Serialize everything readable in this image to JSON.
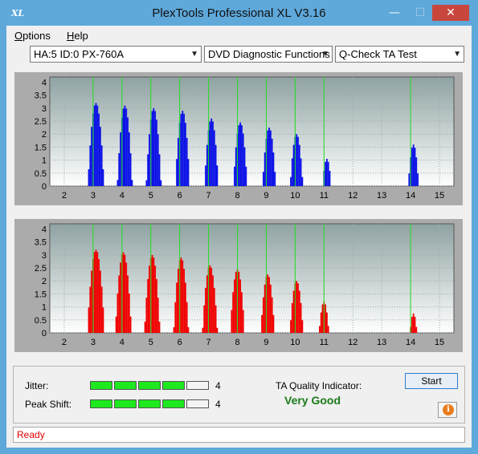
{
  "window": {
    "title": "PlexTools Professional XL V3.16",
    "icon_text": "XL",
    "minimize": "—",
    "maximize": "☐",
    "close": "✕"
  },
  "menu": [
    {
      "label": "Options"
    },
    {
      "label": "Help"
    }
  ],
  "toolbar": {
    "drive_select": "HA:5 ID:0  PX-760A",
    "function_select": "DVD Diagnostic Functions",
    "test_select": "Q-Check TA Test"
  },
  "chart_data": [
    {
      "type": "bar",
      "title": "",
      "color": "#0a10e6",
      "x_ticks": [
        "2",
        "3",
        "4",
        "5",
        "6",
        "7",
        "8",
        "9",
        "10",
        "11",
        "12",
        "13",
        "14",
        "15"
      ],
      "y_ticks": [
        "4",
        "3.5",
        "3",
        "2.5",
        "2",
        "1.5",
        "1",
        "0.5",
        "0"
      ],
      "ylim": [
        0,
        4.2
      ],
      "xlim": [
        1.5,
        15.5
      ],
      "peak_markers": [
        3,
        4,
        5,
        6,
        7,
        8,
        9,
        10,
        11,
        14
      ],
      "peaks": [
        {
          "center": 3.1,
          "height": 3.2,
          "spread": 0.28
        },
        {
          "center": 4.1,
          "height": 3.1,
          "spread": 0.26
        },
        {
          "center": 5.1,
          "height": 3.0,
          "spread": 0.26
        },
        {
          "center": 6.1,
          "height": 2.9,
          "spread": 0.25
        },
        {
          "center": 7.1,
          "height": 2.6,
          "spread": 0.24
        },
        {
          "center": 8.1,
          "height": 2.45,
          "spread": 0.24
        },
        {
          "center": 9.1,
          "height": 2.25,
          "spread": 0.23
        },
        {
          "center": 10.05,
          "height": 2.0,
          "spread": 0.22
        },
        {
          "center": 11.1,
          "height": 1.05,
          "spread": 0.15
        },
        {
          "center": 14.1,
          "height": 1.6,
          "spread": 0.18
        }
      ]
    },
    {
      "type": "bar",
      "title": "",
      "color": "#f00000",
      "x_ticks": [
        "2",
        "3",
        "4",
        "5",
        "6",
        "7",
        "8",
        "9",
        "10",
        "11",
        "12",
        "13",
        "14",
        "15"
      ],
      "y_ticks": [
        "4",
        "3.5",
        "3",
        "2.5",
        "2",
        "1.5",
        "1",
        "0.5",
        "0"
      ],
      "ylim": [
        0,
        4.2
      ],
      "xlim": [
        1.5,
        15.5
      ],
      "peak_markers": [
        3,
        4,
        5,
        6,
        7,
        8,
        9,
        10,
        11,
        14
      ],
      "peaks": [
        {
          "center": 3.1,
          "height": 3.2,
          "spread": 0.3
        },
        {
          "center": 4.05,
          "height": 3.1,
          "spread": 0.28
        },
        {
          "center": 5.05,
          "height": 3.0,
          "spread": 0.27
        },
        {
          "center": 6.05,
          "height": 2.9,
          "spread": 0.26
        },
        {
          "center": 7.05,
          "height": 2.6,
          "spread": 0.26
        },
        {
          "center": 8.0,
          "height": 2.45,
          "spread": 0.25
        },
        {
          "center": 9.05,
          "height": 2.25,
          "spread": 0.24
        },
        {
          "center": 10.05,
          "height": 2.0,
          "spread": 0.23
        },
        {
          "center": 11.0,
          "height": 1.2,
          "spread": 0.17
        },
        {
          "center": 14.1,
          "height": 0.75,
          "spread": 0.12
        }
      ]
    }
  ],
  "metrics": {
    "jitter": {
      "label": "Jitter:",
      "value": "4",
      "segments_on": 4,
      "segments_total": 5
    },
    "peak_shift": {
      "label": "Peak Shift:",
      "value": "4",
      "segments_on": 4,
      "segments_total": 5
    }
  },
  "quality": {
    "label": "TA Quality Indicator:",
    "value": "Very Good"
  },
  "buttons": {
    "start": "Start",
    "info": "i"
  },
  "status": {
    "text": "Ready"
  },
  "colors": {
    "title_bar": "#5ea8da",
    "meter_on": "#1ee81e",
    "status": "#e00000",
    "quality": "#1a7a1a"
  }
}
